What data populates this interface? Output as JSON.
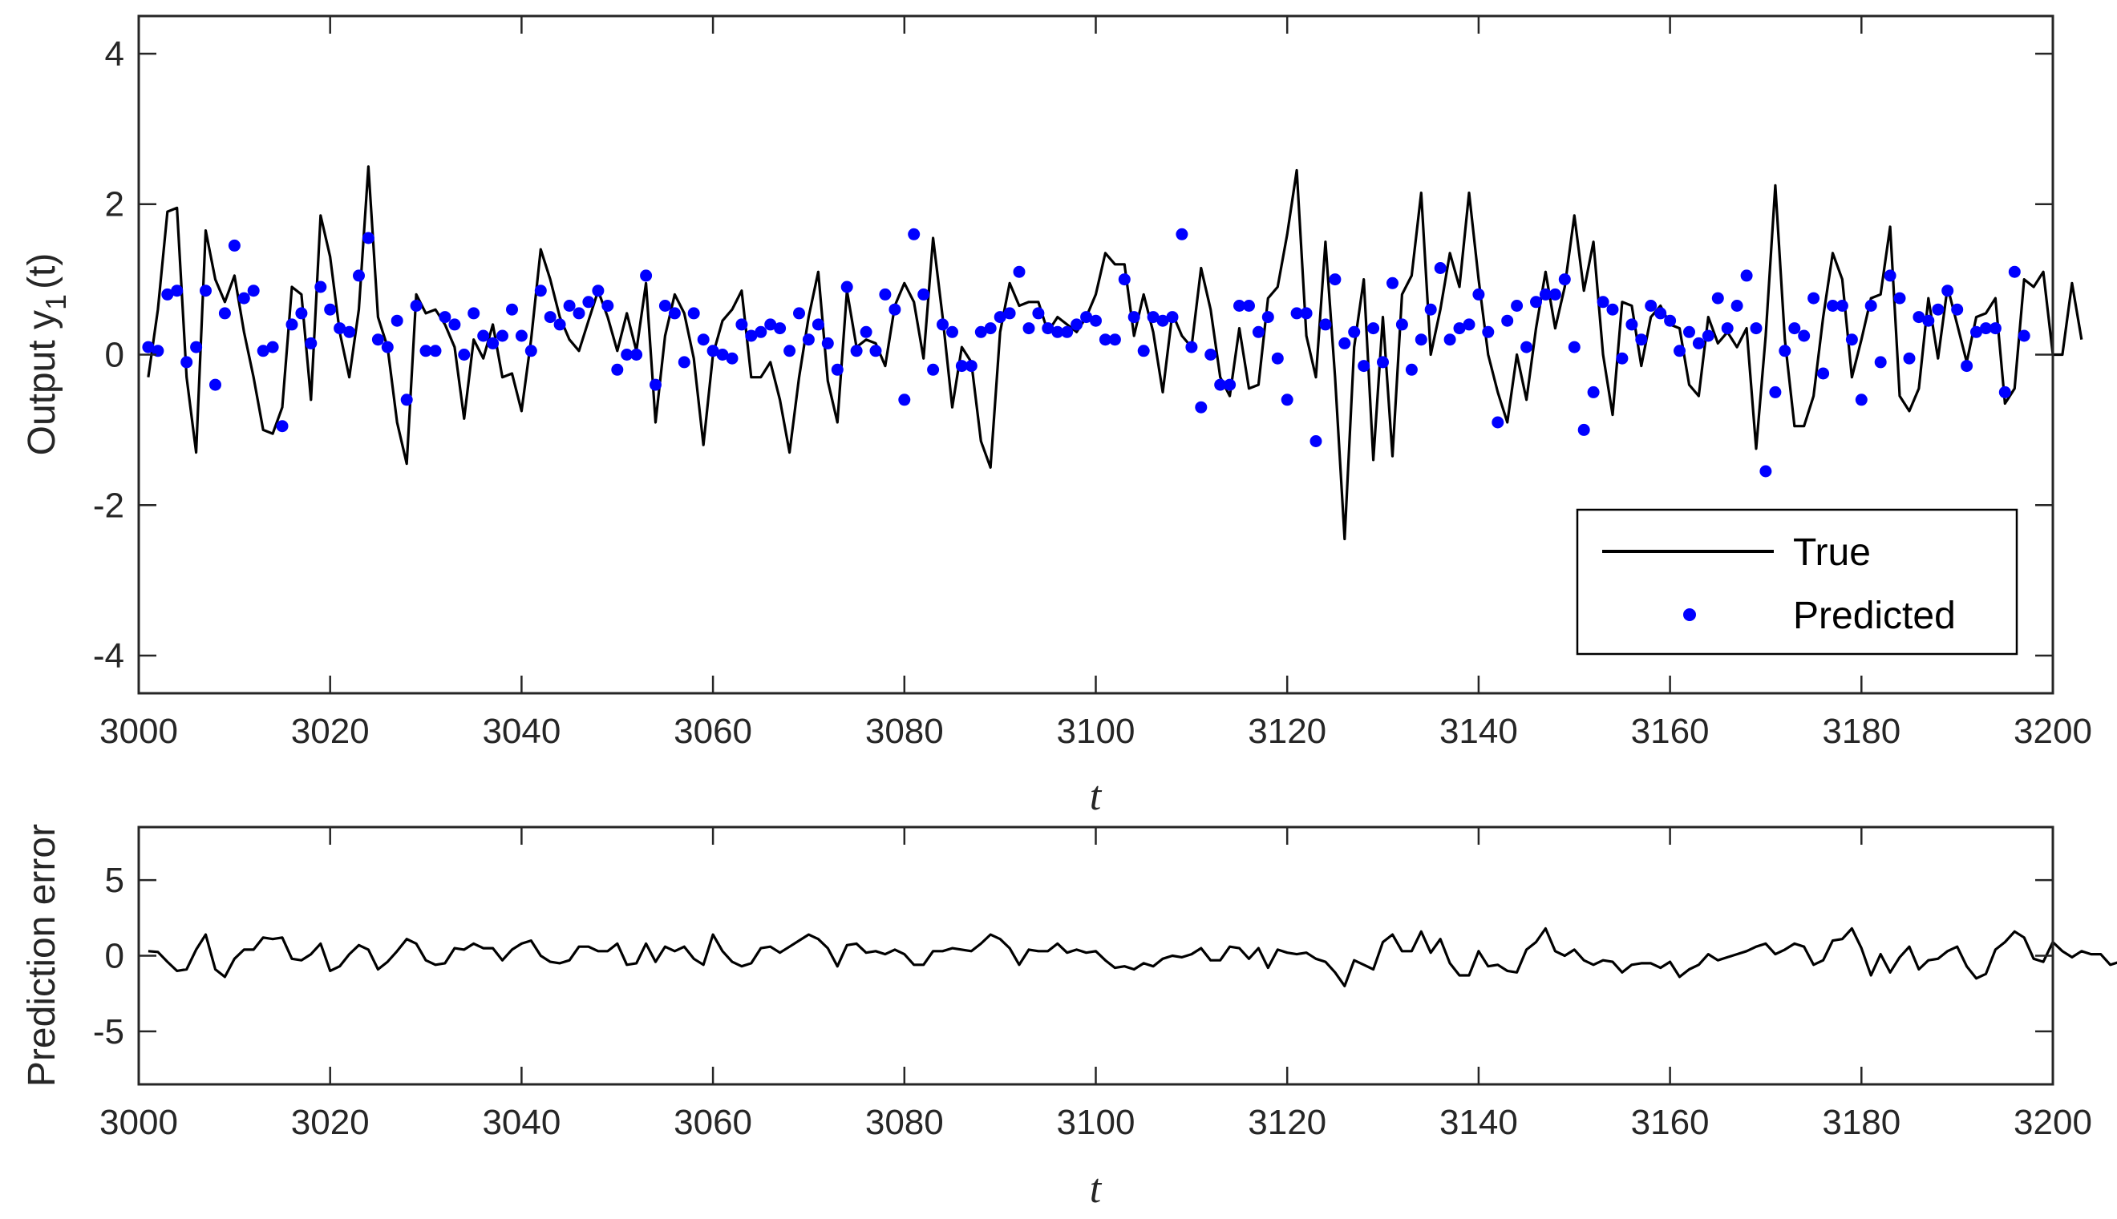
{
  "colors": {
    "true_line": "#000000",
    "predicted_marker": "#0000ff",
    "error_line": "#000000",
    "axes": "#262626"
  },
  "chart_data": [
    {
      "type": "line",
      "xlabel": "t",
      "ylabel_main": "Output y",
      "ylabel_sub": "1",
      "ylabel_suffix": "(t)",
      "xlim": [
        3000,
        3200
      ],
      "ylim": [
        -4.5,
        4.5
      ],
      "xticks": [
        "3000",
        "3020",
        "3040",
        "3060",
        "3080",
        "3100",
        "3120",
        "3140",
        "3160",
        "3180",
        "3200"
      ],
      "yticks": [
        "4",
        "2",
        "0",
        "-2",
        "-4"
      ],
      "ytick_values": [
        4,
        2,
        0,
        -2,
        -4
      ],
      "grid": false,
      "legend_position": "bottom-right",
      "x_start": 3001,
      "x_step": 1,
      "series": [
        {
          "name": "True",
          "style": "line",
          "values": [
            -0.3,
            0.6,
            1.9,
            1.95,
            -0.3,
            -1.3,
            1.65,
            1.0,
            0.7,
            1.05,
            0.3,
            -0.3,
            -1.0,
            -1.05,
            -0.7,
            0.9,
            0.8,
            -0.6,
            1.85,
            1.3,
            0.3,
            -0.3,
            0.6,
            2.5,
            0.5,
            0.1,
            -0.9,
            -1.45,
            0.8,
            0.55,
            0.6,
            0.4,
            0.1,
            -0.85,
            0.2,
            -0.05,
            0.4,
            -0.3,
            -0.25,
            -0.75,
            0.2,
            1.4,
            1.0,
            0.5,
            0.2,
            0.05,
            0.45,
            0.85,
            0.5,
            0.05,
            0.55,
            0.05,
            0.95,
            -0.9,
            0.25,
            0.8,
            0.55,
            -0.05,
            -1.2,
            0.0,
            0.45,
            0.6,
            0.85,
            -0.3,
            -0.3,
            -0.1,
            -0.6,
            -1.3,
            -0.3,
            0.5,
            1.1,
            -0.35,
            -0.9,
            0.85,
            0.1,
            0.2,
            0.15,
            -0.15,
            0.65,
            0.95,
            0.7,
            -0.05,
            1.55,
            0.5,
            -0.7,
            0.1,
            -0.1,
            -1.15,
            -1.5,
            0.3,
            0.95,
            0.65,
            0.7,
            0.7,
            0.3,
            0.5,
            0.4,
            0.3,
            0.5,
            0.8,
            1.35,
            1.2,
            1.2,
            0.25,
            0.8,
            0.3,
            -0.5,
            0.55,
            0.25,
            0.1,
            1.15,
            0.6,
            -0.3,
            -0.55,
            0.35,
            -0.45,
            -0.4,
            0.75,
            0.9,
            1.6,
            2.45,
            0.25,
            -0.3,
            1.5,
            -0.3,
            -2.45,
            0.1,
            1.0,
            -1.4,
            0.5,
            -1.35,
            0.8,
            1.05,
            2.15,
            0.0,
            0.6,
            1.35,
            0.9,
            2.15,
            1.0,
            0.0,
            -0.5,
            -0.9,
            0.0,
            -0.6,
            0.35,
            1.1,
            0.35,
            0.9,
            1.85,
            0.85,
            1.5,
            0.0,
            -0.8,
            0.7,
            0.65,
            -0.15,
            0.5,
            0.65,
            0.4,
            0.35,
            -0.4,
            -0.55,
            0.5,
            0.15,
            0.3,
            0.1,
            0.35,
            -1.25,
            0.25,
            2.25,
            0.2,
            -0.95,
            -0.95,
            -0.55,
            0.5,
            1.35,
            1.0,
            -0.3,
            0.2,
            0.75,
            0.8,
            1.7,
            -0.55,
            -0.75,
            -0.45,
            0.75,
            -0.05,
            0.9,
            0.4,
            -0.1,
            0.5,
            0.55,
            0.75,
            -0.65,
            -0.45,
            1.0,
            0.9,
            1.1,
            0.0,
            0.0,
            0.95,
            0.2
          ]
        },
        {
          "name": "Predicted",
          "style": "marker",
          "values": [
            0.1,
            0.05,
            0.8,
            0.85,
            -0.1,
            0.1,
            0.85,
            -0.4,
            0.55,
            1.45,
            0.75,
            0.85,
            0.05,
            0.1,
            -0.95,
            0.4,
            0.55,
            0.15,
            0.9,
            0.6,
            0.35,
            0.3,
            1.05,
            1.55,
            0.2,
            0.1,
            0.45,
            -0.6,
            0.65,
            0.05,
            0.05,
            0.5,
            0.4,
            0.0,
            0.55,
            0.25,
            0.15,
            0.25,
            0.6,
            0.25,
            0.05,
            0.85,
            0.5,
            0.4,
            0.65,
            0.55,
            0.7,
            0.85,
            0.65,
            -0.2,
            0.0,
            0.0,
            1.05,
            -0.4,
            0.65,
            0.55,
            -0.1,
            0.55,
            0.2,
            0.05,
            0.0,
            -0.05,
            0.4,
            0.25,
            0.3,
            0.4,
            0.35,
            0.05,
            0.55,
            0.2,
            0.4,
            0.15,
            -0.2,
            0.9,
            0.05,
            0.3,
            0.05,
            0.8,
            0.6,
            -0.6,
            1.6,
            0.8,
            -0.2,
            0.4,
            0.3,
            -0.15,
            -0.15,
            0.3,
            0.35,
            0.5,
            0.55,
            1.1,
            0.35,
            0.55,
            0.35,
            0.3,
            0.3,
            0.4,
            0.5,
            0.45,
            0.2,
            0.2,
            1.0,
            0.5,
            0.05,
            0.5,
            0.45,
            0.5,
            1.6,
            0.1,
            -0.7,
            0.0,
            -0.4,
            -0.4,
            0.65,
            0.65,
            0.3,
            0.5,
            -0.05,
            -0.6,
            0.55,
            0.55,
            -1.15,
            0.4,
            1.0,
            0.15,
            0.3,
            -0.15,
            0.35,
            -0.1,
            0.95,
            0.4,
            -0.2,
            0.2,
            0.6,
            1.15,
            0.2,
            0.35,
            0.4,
            0.8,
            0.3,
            -0.9,
            0.45,
            0.65,
            0.1,
            0.7,
            0.8,
            0.8,
            1.0,
            0.1,
            -1.0,
            -0.5,
            0.7,
            0.6,
            -0.05,
            0.4,
            0.2,
            0.65,
            0.55,
            0.45,
            0.05,
            0.3,
            0.15,
            0.25,
            0.75,
            0.35,
            0.65,
            1.05,
            0.35,
            -1.55,
            -0.5,
            0.05,
            0.35,
            0.25,
            0.75,
            -0.25,
            0.65,
            0.65,
            0.2,
            -0.6,
            0.65,
            -0.1,
            1.05,
            0.75,
            -0.05,
            0.5,
            0.45,
            0.6,
            0.85,
            0.6,
            -0.15,
            0.3,
            0.35,
            0.35,
            -0.5,
            1.1,
            0.25
          ]
        }
      ]
    },
    {
      "type": "line",
      "xlabel": "t",
      "ylabel": "Prediction error",
      "xlim": [
        3000,
        3200
      ],
      "ylim": [
        -8.5,
        8.5
      ],
      "xticks": [
        "3000",
        "3020",
        "3040",
        "3060",
        "3080",
        "3100",
        "3120",
        "3140",
        "3160",
        "3180",
        "3200"
      ],
      "yticks": [
        "5",
        "0",
        "-5"
      ],
      "ytick_values": [
        5,
        0,
        -5
      ],
      "grid": false,
      "x_start": 3001,
      "x_step": 1,
      "series": [
        {
          "style": "line",
          "values": [
            0.3,
            0.25,
            -0.4,
            -1.0,
            -0.9,
            0.4,
            1.4,
            -0.9,
            -1.4,
            -0.2,
            0.4,
            0.4,
            1.2,
            1.1,
            1.2,
            -0.2,
            -0.3,
            0.1,
            0.8,
            -1.0,
            -0.7,
            0.1,
            0.7,
            0.4,
            -0.9,
            -0.4,
            0.3,
            1.1,
            0.8,
            -0.3,
            -0.6,
            -0.5,
            0.5,
            0.4,
            0.8,
            0.5,
            0.5,
            -0.3,
            0.4,
            0.8,
            1.0,
            0.0,
            -0.4,
            -0.5,
            -0.3,
            0.6,
            0.6,
            0.3,
            0.3,
            0.8,
            -0.6,
            -0.5,
            0.8,
            -0.4,
            0.6,
            0.3,
            0.6,
            -0.2,
            -0.6,
            1.4,
            0.3,
            -0.4,
            -0.7,
            -0.5,
            0.5,
            0.6,
            0.2,
            0.6,
            1.0,
            1.4,
            1.1,
            0.5,
            -0.7,
            0.7,
            0.8,
            0.2,
            0.3,
            0.1,
            0.4,
            0.1,
            -0.6,
            -0.6,
            0.3,
            0.3,
            0.5,
            0.4,
            0.3,
            0.8,
            1.4,
            1.1,
            0.5,
            -0.6,
            0.4,
            0.3,
            0.3,
            0.8,
            0.2,
            0.4,
            0.2,
            0.3,
            -0.3,
            -0.8,
            -0.7,
            -0.9,
            -0.5,
            -0.7,
            -0.2,
            0.0,
            -0.1,
            0.1,
            0.5,
            -0.3,
            -0.3,
            0.6,
            0.5,
            -0.2,
            0.5,
            -0.8,
            0.4,
            0.2,
            0.1,
            0.2,
            -0.2,
            -0.4,
            -1.1,
            -2.0,
            -0.3,
            -0.6,
            -0.9,
            0.9,
            1.4,
            0.3,
            0.3,
            1.6,
            0.2,
            1.1,
            -0.5,
            -1.3,
            -1.3,
            0.3,
            -0.7,
            -0.6,
            -1.0,
            -1.1,
            0.4,
            0.9,
            1.8,
            0.3,
            0.0,
            0.4,
            -0.3,
            -0.6,
            -0.3,
            -0.4,
            -1.1,
            -0.6,
            -0.5,
            -0.5,
            -0.8,
            -0.4,
            -1.4,
            -0.9,
            -0.6,
            0.1,
            -0.3,
            -0.1,
            0.1,
            0.3,
            0.6,
            0.8,
            0.1,
            0.4,
            0.8,
            0.6,
            -0.6,
            -0.3,
            1.0,
            1.1,
            1.8,
            0.5,
            -1.3,
            0.1,
            -1.1,
            -0.1,
            0.6,
            -0.9,
            -0.3,
            -0.2,
            0.3,
            0.6,
            -0.7,
            -1.5,
            -1.2,
            0.4,
            0.9,
            1.6,
            1.2,
            -0.2,
            -0.4,
            0.9,
            0.3,
            -0.1,
            0.3,
            0.1,
            0.1,
            -0.6,
            -0.4,
            -0.6,
            -0.5,
            -0.1,
            0.2,
            0.0
          ]
        }
      ]
    }
  ],
  "legend": {
    "true_label": "True",
    "predicted_label": "Predicted"
  }
}
